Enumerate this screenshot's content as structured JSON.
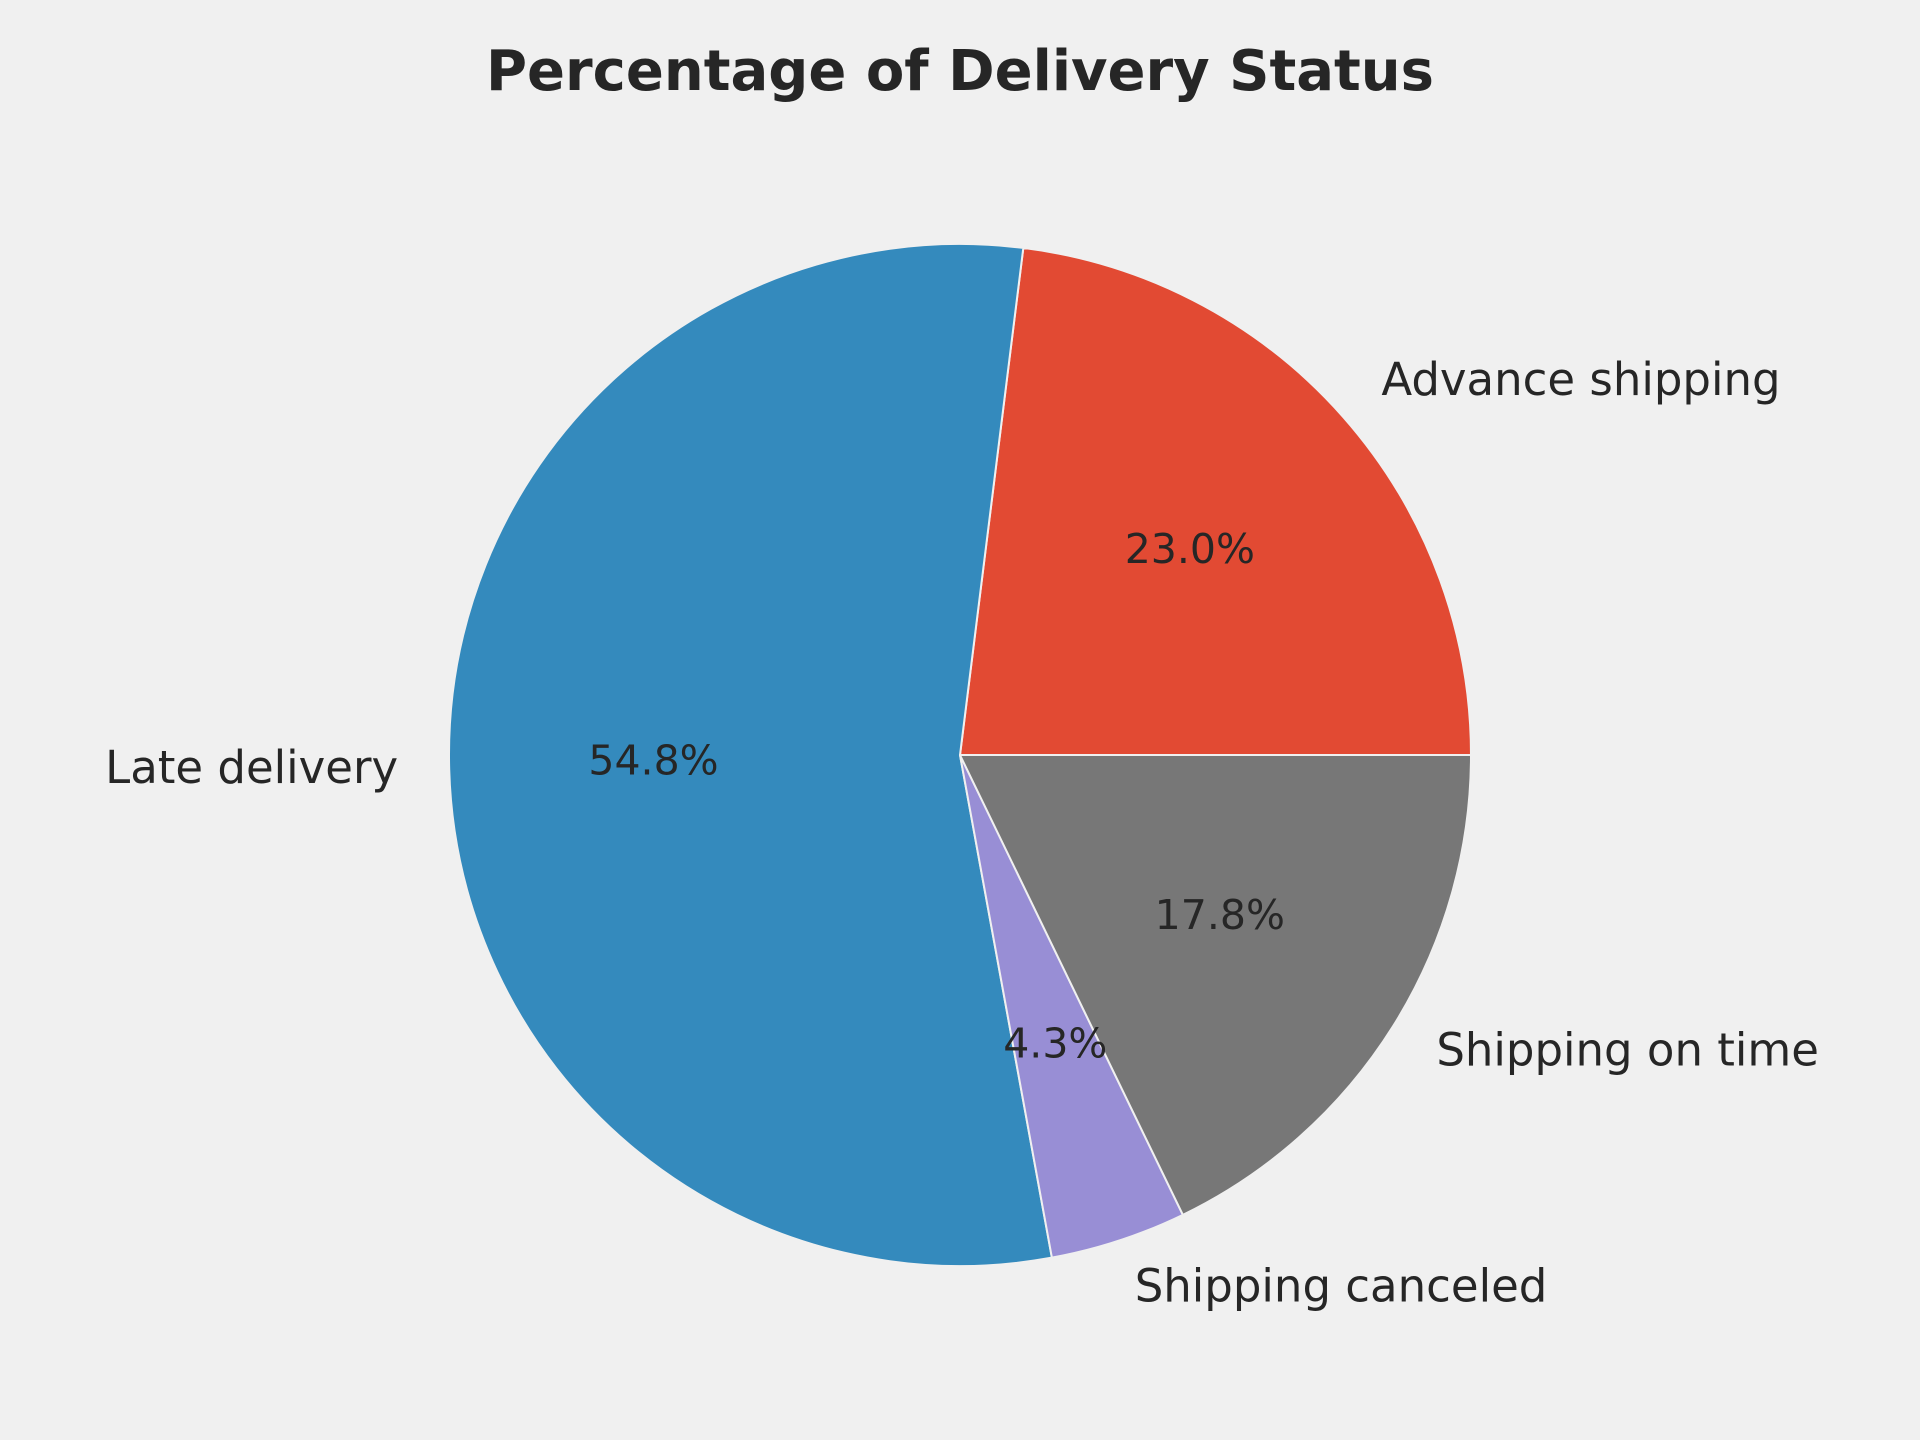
{
  "chart_data": {
    "type": "pie",
    "title": "Percentage of Delivery Status",
    "slices": [
      {
        "label": "Advance shipping",
        "value": 23.0,
        "display": "23.0%",
        "color": "#e24a33"
      },
      {
        "label": "Late delivery",
        "value": 54.8,
        "display": "54.8%",
        "color": "#348abd"
      },
      {
        "label": "Shipping canceled",
        "value": 4.3,
        "display": "4.3%",
        "color": "#988ed5"
      },
      {
        "label": "Shipping on time",
        "value": 17.8,
        "display": "17.8%",
        "color": "#777777"
      }
    ],
    "start_angle_deg": 0,
    "direction": "counterclockwise",
    "background": "#f0f0f0",
    "edge_color": "#f0f0f0"
  }
}
